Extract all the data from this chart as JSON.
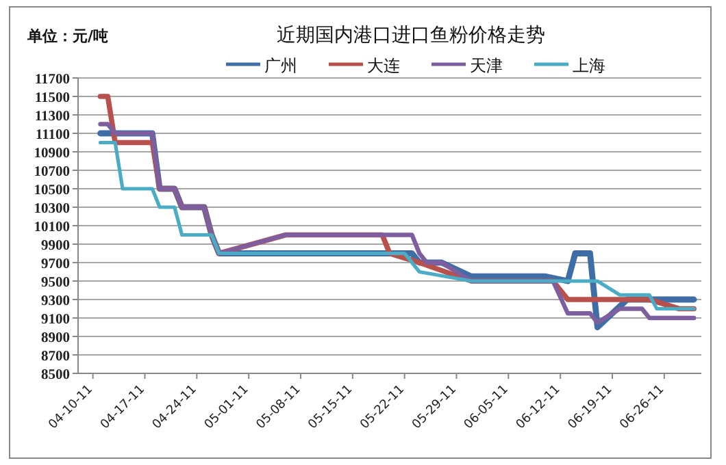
{
  "chart_data": {
    "type": "line",
    "title": "近期国内港口进口鱼粉价格走势",
    "ylabel": "单位：元/吨",
    "xlim": [
      "--04-08",
      "--07-01"
    ],
    "xticks": [
      {
        "value": "--04-10",
        "label": "04-10-11"
      },
      {
        "value": "--04-17",
        "label": "04-17-11"
      },
      {
        "value": "--04-24",
        "label": "04-24-11"
      },
      {
        "value": "--05-01",
        "label": "05-01-11"
      },
      {
        "value": "--05-08",
        "label": "05-08-11"
      },
      {
        "value": "--05-15",
        "label": "05-15-11"
      },
      {
        "value": "--05-22",
        "label": "05-22-11"
      },
      {
        "value": "--05-29",
        "label": "05-29-11"
      },
      {
        "value": "--06-05",
        "label": "06-05-11"
      },
      {
        "value": "--06-12",
        "label": "06-12-11"
      },
      {
        "value": "--06-19",
        "label": "06-19-11"
      },
      {
        "value": "--06-26",
        "label": "06-26-11"
      }
    ],
    "ylim": [
      8500,
      11700
    ],
    "yticks": [
      8500,
      8700,
      8900,
      9100,
      9300,
      9500,
      9700,
      9900,
      10100,
      10300,
      10500,
      10700,
      10900,
      11100,
      11300,
      11500,
      11700
    ],
    "grid": "y",
    "legend": "top",
    "line_style": "solid",
    "marker": "none",
    "series": [
      {
        "name": "广州",
        "color": "#3f6ea6",
        "x": [
          "--04-11",
          "--04-13",
          "--04-18",
          "--04-19",
          "--04-21",
          "--04-22",
          "--04-25",
          "--04-26",
          "--04-27",
          "--05-23",
          "--05-24",
          "--05-27",
          "--05-31",
          "--06-10",
          "--06-13",
          "--06-14",
          "--06-16",
          "--06-17",
          "--06-21",
          "--06-30"
        ],
        "values": [
          11100,
          11100,
          11100,
          10500,
          10500,
          10300,
          10300,
          10000,
          9800,
          9800,
          9700,
          9700,
          9550,
          9550,
          9500,
          9800,
          9800,
          9000,
          9300,
          9300
        ]
      },
      {
        "name": "大连",
        "color": "#b8504b",
        "x": [
          "--04-11",
          "--04-12",
          "--04-13",
          "--04-18",
          "--04-19",
          "--04-21",
          "--04-22",
          "--04-25",
          "--04-26",
          "--04-27",
          "--05-06",
          "--05-19",
          "--05-20",
          "--05-24",
          "--05-31",
          "--06-11",
          "--06-13",
          "--06-24",
          "--06-28",
          "--06-30"
        ],
        "values": [
          11500,
          11500,
          11000,
          11000,
          10500,
          10500,
          10300,
          10300,
          10000,
          9800,
          10000,
          10000,
          9800,
          9700,
          9500,
          9500,
          9300,
          9300,
          9200,
          9200
        ]
      },
      {
        "name": "天津",
        "color": "#7d5fa0",
        "x": [
          "--04-11",
          "--04-12",
          "--04-13",
          "--04-18",
          "--04-19",
          "--04-21",
          "--04-22",
          "--04-25",
          "--04-26",
          "--04-27",
          "--05-06",
          "--05-23",
          "--05-24",
          "--05-25",
          "--05-27",
          "--05-31",
          "--06-11",
          "--06-13",
          "--06-16",
          "--06-17",
          "--06-20",
          "--06-23",
          "--06-24",
          "--06-30"
        ],
        "values": [
          11200,
          11200,
          11100,
          11100,
          10500,
          10500,
          10300,
          10300,
          10000,
          9800,
          10000,
          10000,
          9800,
          9700,
          9700,
          9500,
          9500,
          9150,
          9150,
          9050,
          9200,
          9200,
          9100,
          9100
        ]
      },
      {
        "name": "上海",
        "color": "#4bacc6",
        "x": [
          "--04-11",
          "--04-13",
          "--04-14",
          "--04-18",
          "--04-19",
          "--04-21",
          "--04-22",
          "--04-26",
          "--04-27",
          "--05-22",
          "--05-24",
          "--05-31",
          "--06-17",
          "--06-20",
          "--06-24",
          "--06-25",
          "--06-30"
        ],
        "values": [
          11000,
          11000,
          10500,
          10500,
          10300,
          10300,
          10000,
          10000,
          9800,
          9800,
          9600,
          9500,
          9500,
          9350,
          9350,
          9200,
          9200
        ]
      }
    ]
  }
}
